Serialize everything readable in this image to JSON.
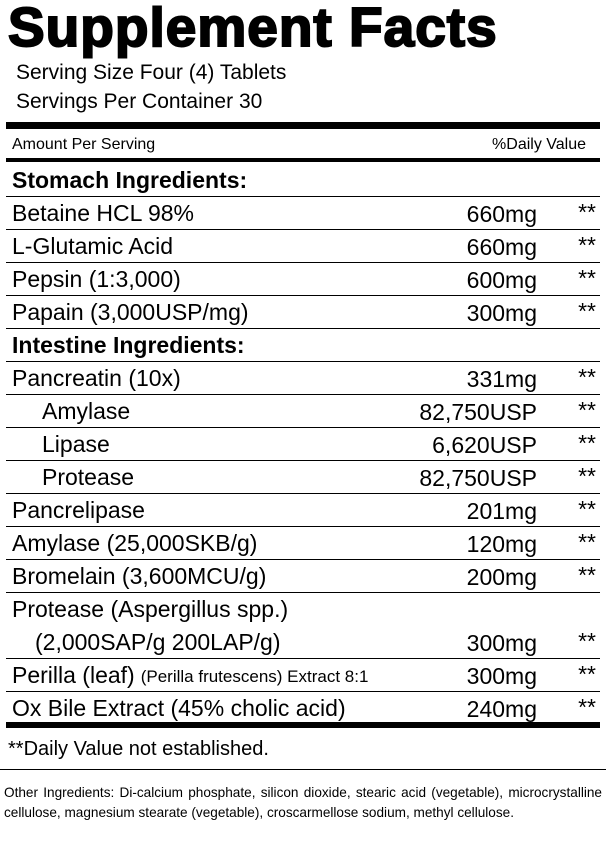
{
  "title": "Supplement Facts",
  "serving_size": "Serving Size Four (4) Tablets",
  "servings_per_container": "Servings Per Container 30",
  "header": {
    "amount": "Amount Per Serving",
    "daily_value": "%Daily Value"
  },
  "sections": [
    {
      "title": "Stomach Ingredients:",
      "items": [
        {
          "name": "Betaine HCL 98%",
          "amount": "660mg",
          "dv": "**"
        },
        {
          "name": "L-Glutamic Acid",
          "amount": "660mg",
          "dv": "**"
        },
        {
          "name": "Pepsin (1:3,000)",
          "amount": "600mg",
          "dv": "**"
        },
        {
          "name": "Papain (3,000USP/mg)",
          "amount": "300mg",
          "dv": "**"
        }
      ]
    },
    {
      "title": "Intestine Ingredients:",
      "items": [
        {
          "name": "Pancreatin (10x)",
          "amount": "331mg",
          "dv": "**",
          "components": [
            {
              "name": "Amylase",
              "amount": "82,750USP",
              "dv": "**"
            },
            {
              "name": "Lipase",
              "amount": "6,620USP",
              "dv": "**"
            },
            {
              "name": "Protease",
              "amount": "82,750USP",
              "dv": "**"
            }
          ]
        },
        {
          "name": "Pancrelipase",
          "amount": "201mg",
          "dv": "**"
        },
        {
          "name": "Amylase (25,000SKB/g)",
          "amount": "120mg",
          "dv": "**"
        },
        {
          "name": "Bromelain (3,600MCU/g)",
          "amount": "200mg",
          "dv": "**"
        },
        {
          "name": "Protease (Aspergillus spp.)",
          "detail": "(2,000SAP/g 200LAP/g)",
          "amount": "300mg",
          "dv": "**"
        },
        {
          "name": "Perilla (leaf)",
          "note": "(Perilla frutescens) Extract 8:1",
          "amount": "300mg",
          "dv": "**"
        },
        {
          "name": "Ox Bile Extract (45% cholic acid)",
          "amount": "240mg",
          "dv": "**"
        }
      ]
    }
  ],
  "footnote": "**Daily Value not established.",
  "other_ingredients": "Other Ingredients: Di-calcium phosphate, silicon dioxide, stearic acid (vegetable), microcrystalline cellulose, magnesium stearate (vegetable), croscarmellose sodium, methyl cellulose."
}
